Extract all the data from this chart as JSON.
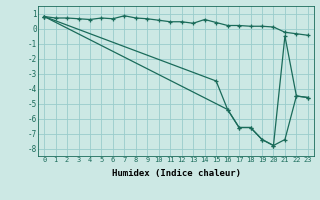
{
  "xlabel": "Humidex (Indice chaleur)",
  "bg_color": "#cce8e4",
  "grid_color": "#99cccc",
  "line_color": "#1a6b5a",
  "xlim": [
    -0.5,
    23.5
  ],
  "ylim": [
    -8.5,
    1.5
  ],
  "xticks": [
    0,
    1,
    2,
    3,
    4,
    5,
    6,
    7,
    8,
    9,
    10,
    11,
    12,
    13,
    14,
    15,
    16,
    17,
    18,
    19,
    20,
    21,
    22,
    23
  ],
  "yticks": [
    1,
    0,
    -1,
    -2,
    -3,
    -4,
    -5,
    -6,
    -7,
    -8
  ],
  "curve1_x": [
    0,
    1,
    2,
    3,
    4,
    5,
    6,
    7,
    8,
    9,
    10,
    11,
    12,
    13,
    14,
    15,
    16,
    17,
    18,
    19,
    20,
    21,
    22,
    23
  ],
  "curve1_y": [
    0.8,
    0.7,
    0.7,
    0.65,
    0.6,
    0.7,
    0.65,
    0.85,
    0.7,
    0.65,
    0.55,
    0.45,
    0.45,
    0.35,
    0.6,
    0.4,
    0.2,
    0.2,
    0.15,
    0.15,
    0.1,
    -0.25,
    -0.35,
    -0.45
  ],
  "curve2_x": [
    0,
    16,
    17,
    18,
    19,
    20,
    21,
    22,
    23
  ],
  "curve2_y": [
    0.8,
    -5.4,
    -6.6,
    -6.6,
    -7.4,
    -7.8,
    -7.4,
    -4.5,
    -4.6
  ],
  "curve3_x": [
    0,
    15,
    16,
    17,
    18,
    19,
    20,
    21,
    22,
    23
  ],
  "curve3_y": [
    0.8,
    -3.5,
    -5.4,
    -6.6,
    -6.6,
    -7.4,
    -7.8,
    -0.5,
    -4.5,
    -4.6
  ]
}
